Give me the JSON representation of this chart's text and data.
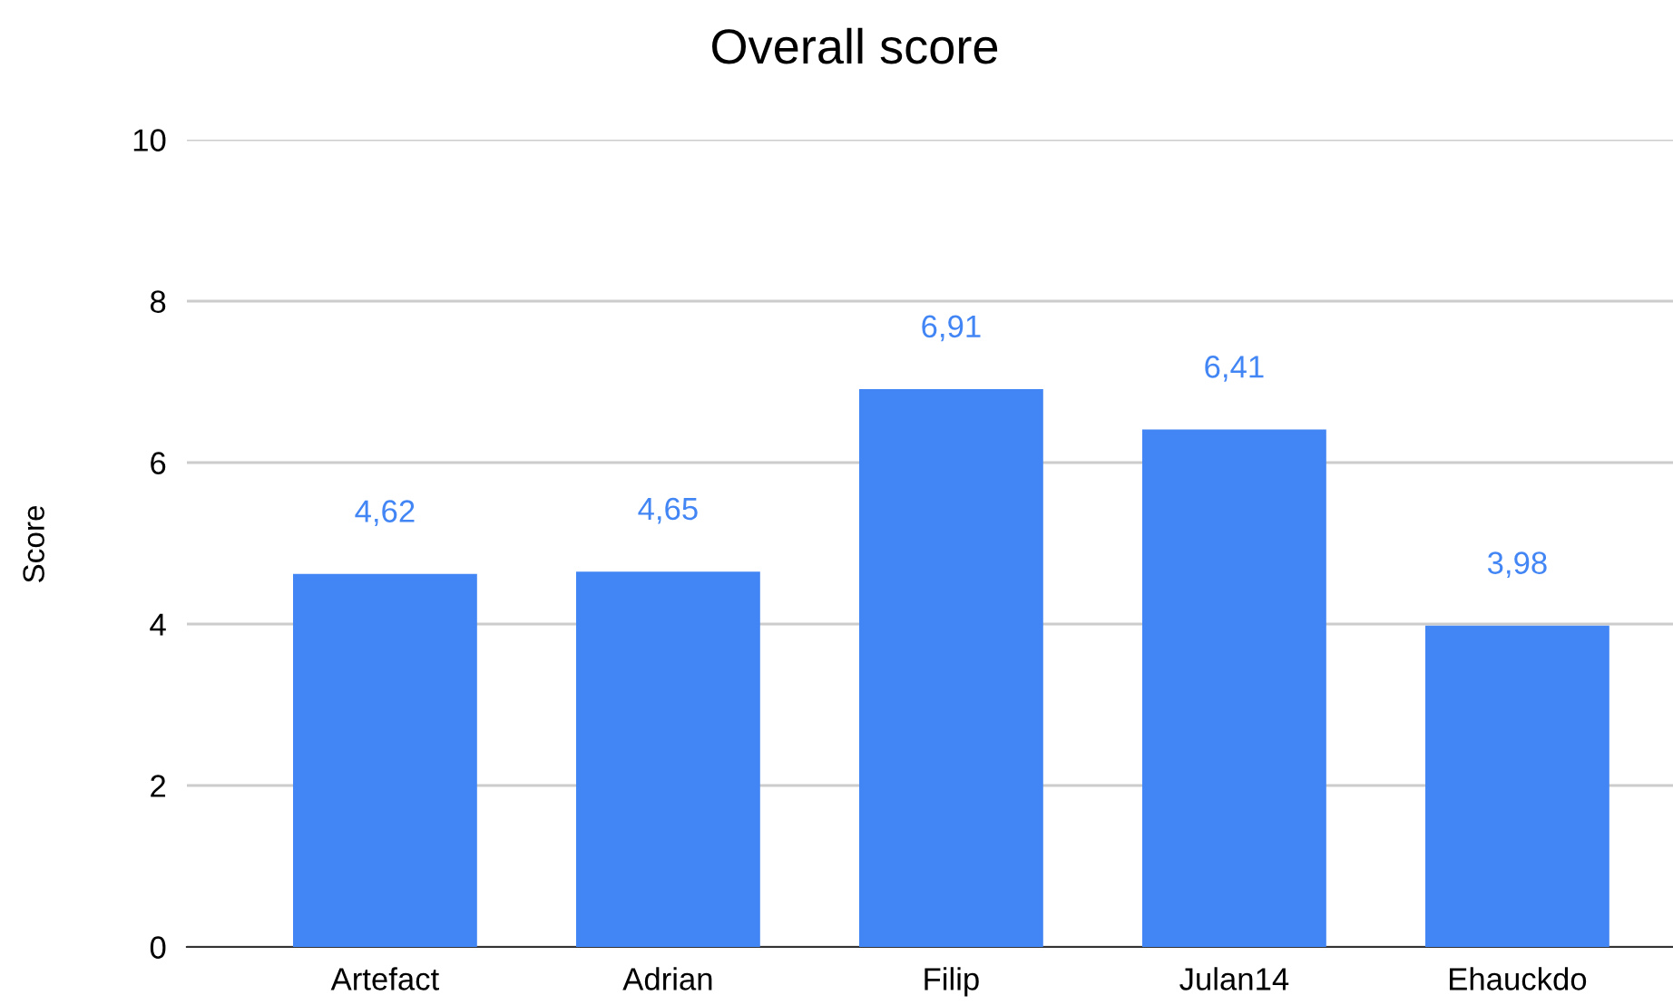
{
  "chart_data": {
    "type": "bar",
    "title": "Overall score",
    "ylabel": "Score",
    "categories": [
      "Artefact",
      "Adrian",
      "Filip",
      "Julan14",
      "Ehauckdo"
    ],
    "values": [
      4.62,
      4.65,
      6.91,
      6.41,
      3.98
    ],
    "value_labels": [
      "4,62",
      "4,65",
      "6,91",
      "6,41",
      "3,98"
    ],
    "color": "#4285f4",
    "ylim": [
      0,
      10
    ],
    "yticks": [
      0,
      2,
      4,
      6,
      8,
      10
    ],
    "grid": "y",
    "legend": false
  }
}
